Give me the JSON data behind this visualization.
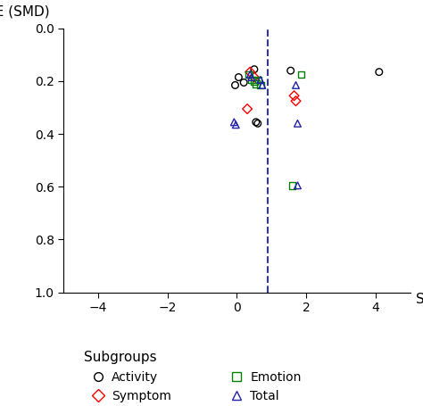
{
  "xlabel": "SMD",
  "ylabel": "SE (SMD)",
  "xlim": [
    -5,
    5
  ],
  "ylim": [
    1.0,
    0.0
  ],
  "xticks": [
    -4,
    -2,
    0,
    2,
    4
  ],
  "yticks": [
    0,
    0.2,
    0.4,
    0.6,
    0.8,
    1.0
  ],
  "dashed_line_x": 0.9,
  "dashed_line_color": "#3535aa",
  "activity": {
    "x": [
      0.05,
      -0.05,
      0.2,
      0.55,
      0.6,
      0.5,
      1.55,
      4.1
    ],
    "y": [
      0.185,
      0.215,
      0.205,
      0.355,
      0.36,
      0.155,
      0.16,
      0.165
    ],
    "color": "black",
    "marker": "o",
    "label": "Activity"
  },
  "symptom": {
    "x": [
      0.3,
      0.5,
      0.38,
      1.65,
      1.7
    ],
    "y": [
      0.305,
      0.185,
      0.165,
      0.255,
      0.275
    ],
    "color": "red",
    "marker": "D",
    "label": "Symptom"
  },
  "emotion": {
    "x": [
      0.35,
      0.42,
      0.5,
      0.55,
      0.62,
      0.68,
      1.85,
      1.6
    ],
    "y": [
      0.175,
      0.195,
      0.2,
      0.21,
      0.195,
      0.215,
      0.175,
      0.595
    ],
    "color": "green",
    "marker": "s",
    "label": "Emotion"
  },
  "total": {
    "x": [
      -0.08,
      -0.03,
      0.38,
      0.42,
      0.68,
      0.73,
      1.7,
      1.75,
      1.75
    ],
    "y": [
      0.355,
      0.365,
      0.175,
      0.185,
      0.195,
      0.215,
      0.215,
      0.36,
      0.595
    ],
    "color": "#2222aa",
    "marker": "^",
    "label": "Total"
  },
  "background_color": "white",
  "figsize": [
    4.74,
    4.55
  ],
  "dpi": 100
}
